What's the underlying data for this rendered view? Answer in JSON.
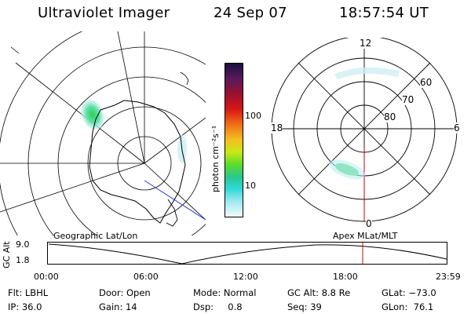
{
  "header": {
    "title": "Ultraviolet Imager",
    "date": "24 Sep 07",
    "time": "18:57:54 UT"
  },
  "colorbar": {
    "unit_label": "photon cm⁻²s⁻¹",
    "ticks": [
      "100",
      "10"
    ]
  },
  "polar_plot": {
    "mlt_labels": {
      "top": "12",
      "left": "18",
      "right": "6",
      "bottom": "0"
    },
    "lat_labels": [
      "60",
      "70",
      "80"
    ]
  },
  "timeline": {
    "left_title": "Geographic Lat/Lon",
    "right_title": "Apex MLat/MLT",
    "y_label": "GC Alt",
    "y_ticks": [
      "9.0",
      "1.8"
    ],
    "x_ticks": [
      "00:00",
      "06:00",
      "12:00",
      "18:00",
      "23:59"
    ],
    "marker_time": "18:57:54",
    "marker_color": "#cc0000"
  },
  "info": {
    "flt": "Flt: LBHL",
    "ip": "IP: 36.0",
    "door": "Door: Open",
    "gain": "Gain: 14",
    "mode": "Mode: Normal",
    "dsp": "Dsp:     0.8",
    "gcalt": "GC Alt: 8.8 Re",
    "seq": "Seq: 39",
    "glat": "GLat: −73.0",
    "glon": "GLon:  76.1"
  }
}
